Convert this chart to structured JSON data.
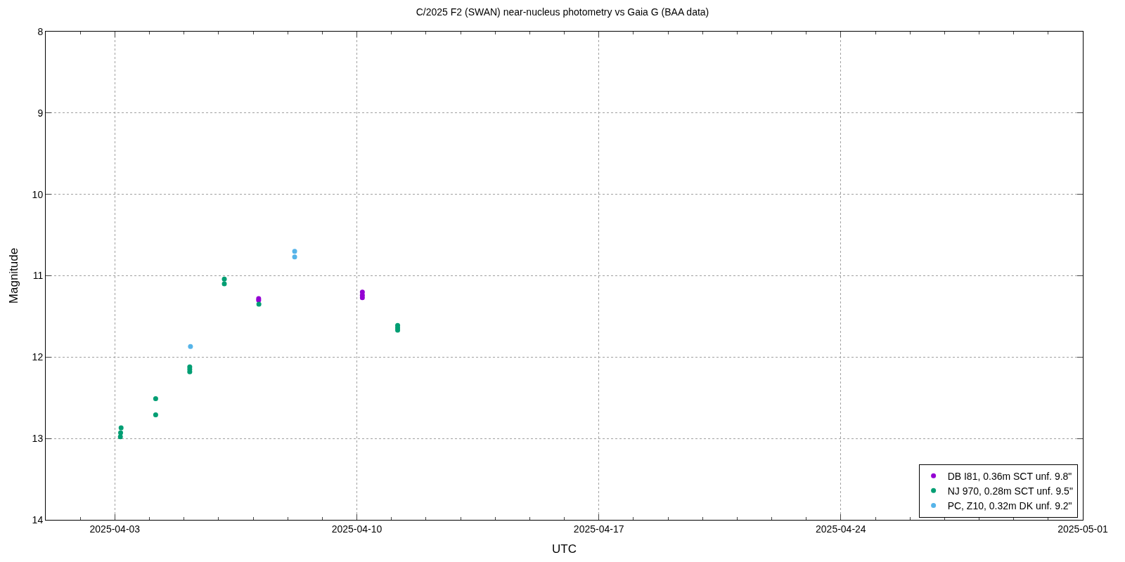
{
  "chart_data": {
    "type": "scatter",
    "title": "C/2025 F2 (SWAN) near-nucleus photometry vs Gaia G (BAA data)",
    "xlabel": "UTC",
    "ylabel": "Magnitude",
    "xlim": [
      "2025-04-01",
      "2025-05-01"
    ],
    "xticks": [
      {
        "value": "2025-04-03",
        "label": "2025-04-03"
      },
      {
        "value": "2025-04-10",
        "label": "2025-04-10"
      },
      {
        "value": "2025-04-17",
        "label": "2025-04-17"
      },
      {
        "value": "2025-04-24",
        "label": "2025-04-24"
      },
      {
        "value": "2025-05-01",
        "label": "2025-05-01"
      }
    ],
    "ylim": [
      14,
      8
    ],
    "yticks": [
      8,
      9,
      10,
      11,
      12,
      13,
      14
    ],
    "grid": true,
    "legend": "bottom right",
    "marker": "circle",
    "series": [
      {
        "name": "DB I81, 0.36m SCT unf. 9.8\"",
        "color": "#9400d3",
        "x": [
          "2025-04-07T03:50",
          "2025-04-07T03:50",
          "2025-04-10T03:50",
          "2025-04-10T03:50",
          "2025-04-10T03:50"
        ],
        "values": [
          11.28,
          11.3,
          11.2,
          11.24,
          11.27
        ]
      },
      {
        "name": "NJ 970, 0.28m SCT unf. 9.5\"",
        "color": "#009e73",
        "x": [
          "2025-04-03T04:20",
          "2025-04-03T04:00",
          "2025-04-03T03:50",
          "2025-04-04T04:20",
          "2025-04-04T04:20",
          "2025-04-05T04:00",
          "2025-04-05T04:00",
          "2025-04-05T04:00",
          "2025-04-06T04:00",
          "2025-04-06T04:00",
          "2025-04-07T04:00",
          "2025-04-11T04:20",
          "2025-04-11T04:20",
          "2025-04-11T04:20"
        ],
        "values": [
          12.87,
          12.93,
          12.98,
          12.51,
          12.71,
          12.12,
          12.15,
          12.18,
          11.04,
          11.1,
          11.35,
          11.61,
          11.64,
          11.67
        ]
      },
      {
        "name": "PC, Z10, 0.32m DK unf. 9.2\"",
        "color": "#56b4e9",
        "x": [
          "2025-04-05T04:30",
          "2025-04-08T04:50",
          "2025-04-08T04:50"
        ],
        "values": [
          11.87,
          10.7,
          10.77
        ]
      }
    ]
  }
}
